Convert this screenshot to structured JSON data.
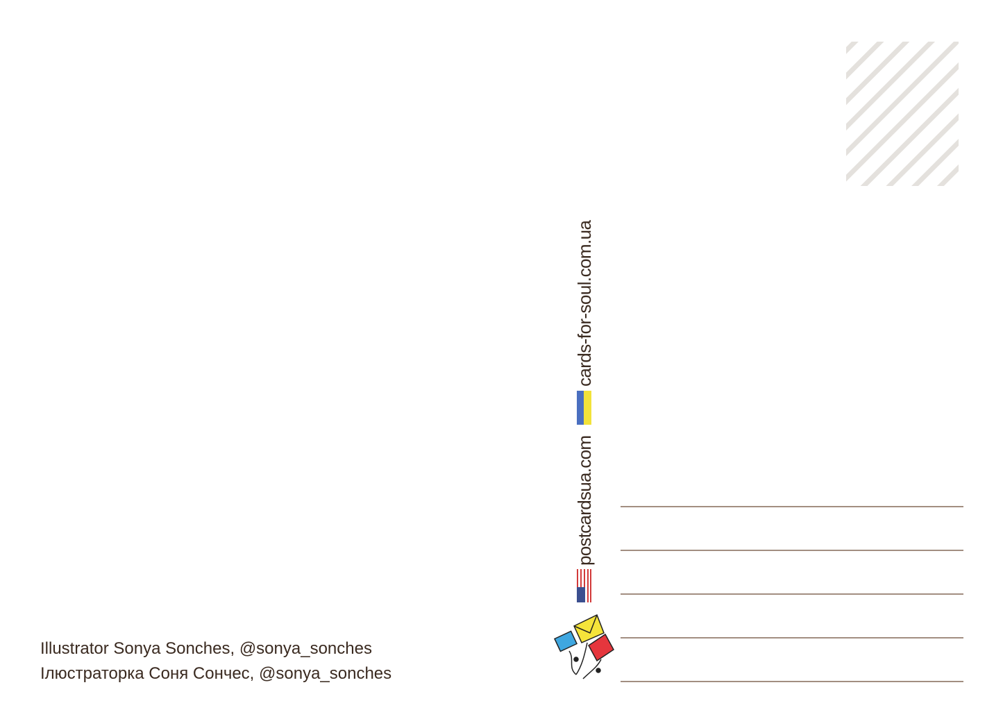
{
  "credits": {
    "line_en": "Illustrator Sonya Sonches, @sonya_sonches",
    "line_ua": "Ілюстраторка Соня Сончес, @sonya_sonches"
  },
  "websites": {
    "us": "postcardsua.com",
    "ua": "cards-for-soul.com.ua"
  }
}
